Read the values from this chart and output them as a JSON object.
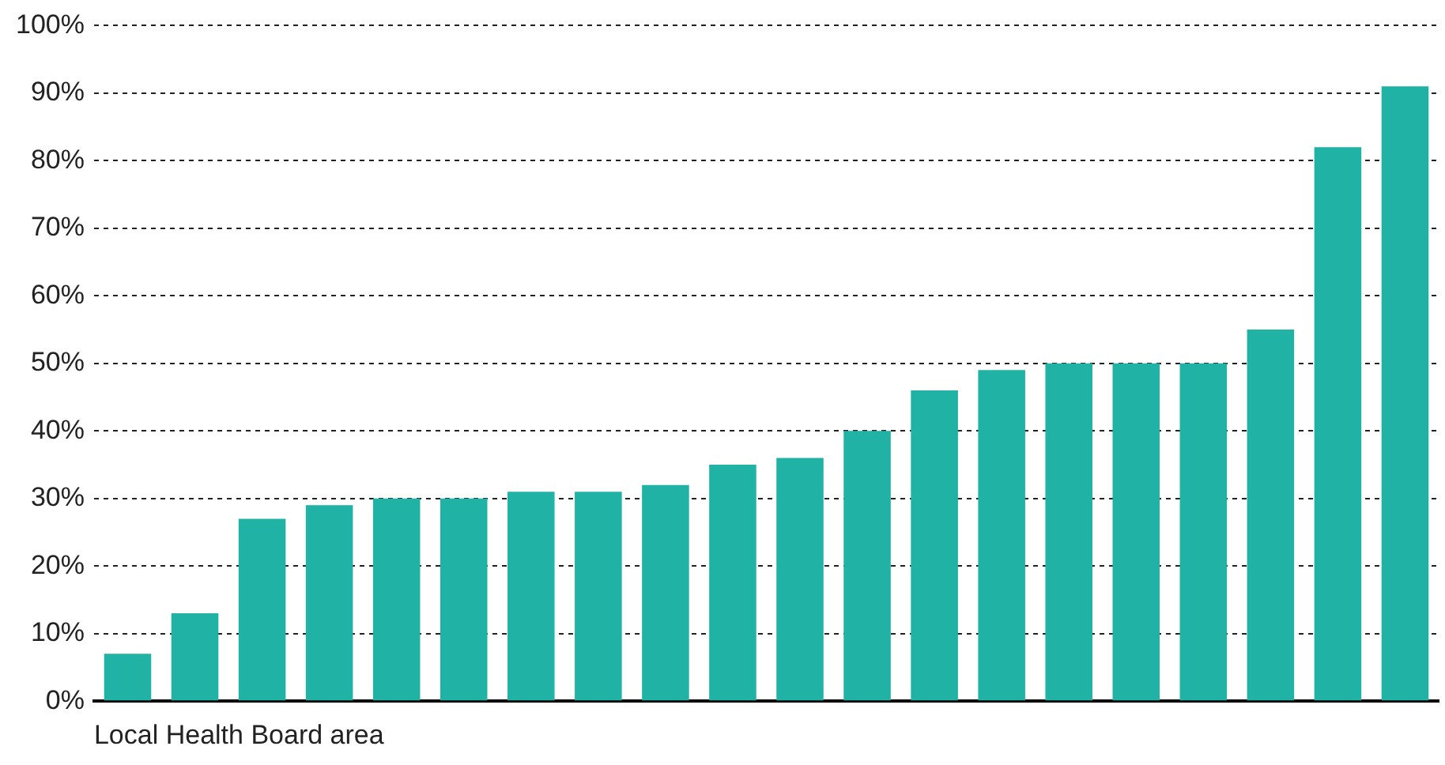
{
  "chart_data": {
    "type": "bar",
    "xlabel": "Local Health Board area",
    "categories": [
      null,
      null,
      null,
      null,
      null,
      null,
      null,
      null,
      null,
      null,
      null,
      null,
      null,
      null,
      null,
      null,
      null,
      null,
      null,
      null
    ],
    "values": [
      7,
      13,
      27,
      29,
      30,
      30,
      31,
      31,
      32,
      35,
      36,
      40,
      46,
      49,
      50,
      50,
      50,
      55,
      82,
      91
    ],
    "color": "#20b2a5",
    "ylim": [
      0,
      100
    ],
    "yticks": [
      {
        "value": 0,
        "label": "0%"
      },
      {
        "value": 10,
        "label": "10%"
      },
      {
        "value": 20,
        "label": "20%"
      },
      {
        "value": 30,
        "label": "30%"
      },
      {
        "value": 40,
        "label": "40%"
      },
      {
        "value": 50,
        "label": "50%"
      },
      {
        "value": 60,
        "label": "60%"
      },
      {
        "value": 70,
        "label": "70%"
      },
      {
        "value": 80,
        "label": "80%"
      },
      {
        "value": 90,
        "label": "90%"
      },
      {
        "value": 100,
        "label": "100%"
      }
    ],
    "grid": "y",
    "legend": false
  }
}
